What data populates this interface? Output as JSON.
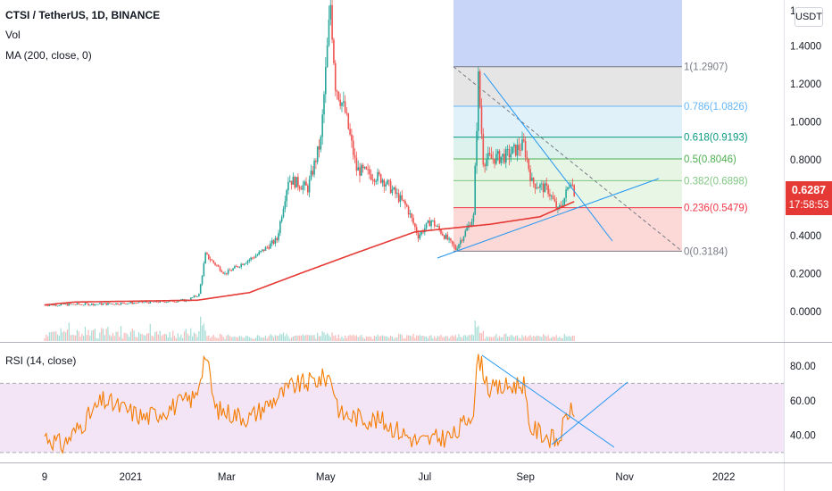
{
  "header": {
    "symbol_line": "CTSI / TetherUS, 1D, BINANCE",
    "vol_label": "Vol",
    "ma_label": "MA (200, close, 0)",
    "rsi_label": "RSI (14, close)",
    "currency_button": "USDT",
    "last_price": "0.6287",
    "countdown": "17:58:53"
  },
  "colors": {
    "up": "#26a69a",
    "down": "#ef5350",
    "ma": "#e53935",
    "rsi_line": "#f57c00",
    "rsi_band": "#f3e5f5",
    "trendline": "#2196f3",
    "price_tag": "#e53935"
  },
  "chart_data": [
    {
      "type": "candlestick",
      "title": "CTSI / TetherUS, 1D, BINANCE",
      "y_axis_ticks": [
        "1.4000",
        "1.2000",
        "1.0000",
        "0.8000",
        "0.6000",
        "0.4000",
        "0.2000",
        "0.0000"
      ],
      "ylim": [
        -0.08,
        1.65
      ],
      "x_axis_ticks": [
        "9",
        "2021",
        "Mar",
        "May",
        "Jul",
        "Sep",
        "Nov",
        "2022"
      ],
      "series": [
        {
          "name": "CTSI",
          "approx_close_path": [
            {
              "date": "2020-11-09",
              "close": 0.035
            },
            {
              "date": "2020-12-15",
              "close": 0.04
            },
            {
              "date": "2021-01-15",
              "close": 0.05
            },
            {
              "date": "2021-02-05",
              "close": 0.06
            },
            {
              "date": "2021-02-12",
              "close": 0.09
            },
            {
              "date": "2021-02-16",
              "close": 0.3
            },
            {
              "date": "2021-02-28",
              "close": 0.2
            },
            {
              "date": "2021-03-20",
              "close": 0.3
            },
            {
              "date": "2021-04-01",
              "close": 0.38
            },
            {
              "date": "2021-04-08",
              "close": 0.7
            },
            {
              "date": "2021-04-20",
              "close": 0.65
            },
            {
              "date": "2021-04-28",
              "close": 0.9
            },
            {
              "date": "2021-05-04",
              "close": 1.62
            },
            {
              "date": "2021-05-07",
              "close": 1.2
            },
            {
              "date": "2021-05-13",
              "close": 1.05
            },
            {
              "date": "2021-05-20",
              "close": 0.75
            },
            {
              "date": "2021-06-05",
              "close": 0.7
            },
            {
              "date": "2021-06-20",
              "close": 0.55
            },
            {
              "date": "2021-06-27",
              "close": 0.4
            },
            {
              "date": "2021-07-05",
              "close": 0.48
            },
            {
              "date": "2021-07-20",
              "close": 0.33
            },
            {
              "date": "2021-07-26",
              "close": 0.42
            },
            {
              "date": "2021-07-31",
              "close": 0.5
            },
            {
              "date": "2021-08-03",
              "close": 1.23
            },
            {
              "date": "2021-08-06",
              "close": 0.8
            },
            {
              "date": "2021-08-20",
              "close": 0.82
            },
            {
              "date": "2021-08-31",
              "close": 0.88
            },
            {
              "date": "2021-09-05",
              "close": 0.68
            },
            {
              "date": "2021-09-15",
              "close": 0.64
            },
            {
              "date": "2021-09-21",
              "close": 0.53
            },
            {
              "date": "2021-09-25",
              "close": 0.6
            },
            {
              "date": "2021-09-29",
              "close": 0.7
            },
            {
              "date": "2021-10-01",
              "close": 0.63
            }
          ]
        },
        {
          "name": "MA (200, close, 0)",
          "approx_path": [
            {
              "date": "2020-11-09",
              "value": 0.035
            },
            {
              "date": "2020-11-27",
              "value": 0.05
            },
            {
              "date": "2021-02-11",
              "value": 0.06
            },
            {
              "date": "2021-03-15",
              "value": 0.1
            },
            {
              "date": "2021-04-15",
              "value": 0.2
            },
            {
              "date": "2021-05-20",
              "value": 0.31
            },
            {
              "date": "2021-06-25",
              "value": 0.42
            },
            {
              "date": "2021-08-10",
              "value": 0.46
            },
            {
              "date": "2021-09-10",
              "value": 0.5
            },
            {
              "date": "2021-10-01",
              "value": 0.58
            }
          ]
        }
      ],
      "fibonacci_levels": [
        {
          "label": "1(1.2907)",
          "value": 1.2907
        },
        {
          "label": "0.786(1.0826)",
          "value": 1.0826
        },
        {
          "label": "0.618(0.9193)",
          "value": 0.9193
        },
        {
          "label": "0.5(0.8046)",
          "value": 0.8046
        },
        {
          "label": "0.382(0.6898)",
          "value": 0.6898
        },
        {
          "label": "0.236(0.5479)",
          "value": 0.5479
        },
        {
          "label": "0(0.3184)",
          "value": 0.3184
        }
      ],
      "last_value": 0.6287
    },
    {
      "type": "line",
      "title": "RSI (14, close)",
      "y_axis_ticks": [
        "80.00",
        "60.00",
        "40.00"
      ],
      "ylim": [
        28,
        88
      ],
      "bands": [
        30,
        70
      ],
      "approx_path": [
        {
          "date": "2020-11-09",
          "value": 40
        },
        {
          "date": "2020-11-20",
          "value": 34
        },
        {
          "date": "2020-12-15",
          "value": 60
        },
        {
          "date": "2021-01-10",
          "value": 50
        },
        {
          "date": "2021-02-10",
          "value": 62
        },
        {
          "date": "2021-02-16",
          "value": 88
        },
        {
          "date": "2021-02-22",
          "value": 55
        },
        {
          "date": "2021-03-15",
          "value": 50
        },
        {
          "date": "2021-04-10",
          "value": 68
        },
        {
          "date": "2021-05-04",
          "value": 74
        },
        {
          "date": "2021-05-10",
          "value": 52
        },
        {
          "date": "2021-06-05",
          "value": 48
        },
        {
          "date": "2021-06-27",
          "value": 36
        },
        {
          "date": "2021-07-20",
          "value": 40
        },
        {
          "date": "2021-07-31",
          "value": 55
        },
        {
          "date": "2021-08-03",
          "value": 86
        },
        {
          "date": "2021-08-10",
          "value": 66
        },
        {
          "date": "2021-08-31",
          "value": 70
        },
        {
          "date": "2021-09-03",
          "value": 45
        },
        {
          "date": "2021-09-21",
          "value": 36
        },
        {
          "date": "2021-09-28",
          "value": 55
        },
        {
          "date": "2021-10-01",
          "value": 50
        }
      ]
    }
  ]
}
